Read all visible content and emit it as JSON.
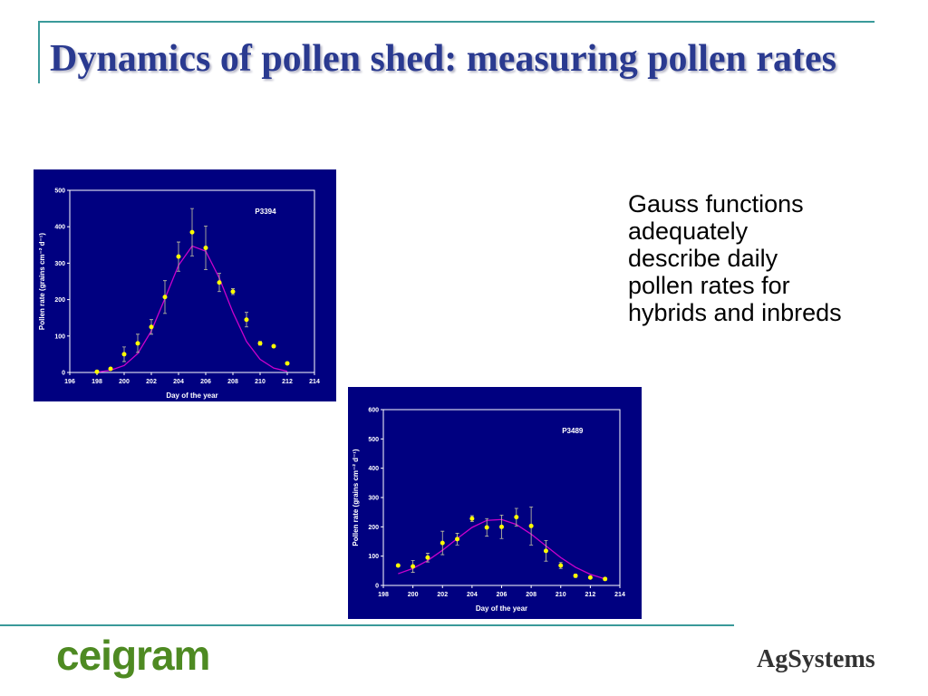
{
  "title": "Dynamics of pollen shed: measuring pollen rates",
  "body_lines": [
    "Gauss functions",
    "adequately",
    "describe daily",
    "pollen rates for",
    "hybrids and inbreds"
  ],
  "logos": [
    "ceigram",
    "AgSystems"
  ],
  "chart_data": [
    {
      "type": "scatter",
      "annotation": "P3394",
      "x_label": "Day of the year",
      "y_label": "Pollen rate (grains cm⁻² d⁻¹)",
      "xlim": [
        196,
        214
      ],
      "xticks": [
        196,
        198,
        200,
        202,
        204,
        206,
        208,
        210,
        212,
        214
      ],
      "ylim": [
        0,
        500
      ],
      "yticks": [
        0,
        100,
        200,
        300,
        400,
        500
      ],
      "series": [
        {
          "type": "scatter",
          "color": "#ffff00",
          "x": [
            198,
            199,
            200,
            201,
            202,
            203,
            204,
            205,
            206,
            207,
            208,
            209,
            210,
            211,
            212
          ],
          "values": [
            2,
            10,
            50,
            80,
            125,
            207,
            318,
            385,
            342,
            247,
            222,
            145,
            80,
            72,
            25
          ],
          "errors": [
            2,
            3,
            20,
            25,
            20,
            45,
            40,
            65,
            60,
            25,
            8,
            20,
            5,
            3,
            3
          ]
        },
        {
          "type": "line",
          "color": "#cc00cc",
          "x": [
            198,
            199,
            200,
            201,
            202,
            203,
            204,
            205,
            206,
            207,
            208,
            209,
            210,
            211,
            212
          ],
          "values": [
            1,
            6,
            19,
            52,
            114,
            203,
            294,
            347,
            333,
            259,
            165,
            85,
            36,
            12,
            3
          ]
        }
      ]
    },
    {
      "type": "scatter",
      "annotation": "P3489",
      "x_label": "Day of the year",
      "y_label": "Pollen rate (grains cm⁻² d⁻¹)",
      "xlim": [
        198,
        214
      ],
      "xticks": [
        198,
        200,
        202,
        204,
        206,
        208,
        210,
        212,
        214
      ],
      "ylim": [
        0,
        600
      ],
      "yticks": [
        0,
        100,
        200,
        300,
        400,
        500,
        600
      ],
      "series": [
        {
          "type": "scatter",
          "color": "#ffff00",
          "x": [
            199,
            200,
            201,
            202,
            203,
            204,
            205,
            206,
            207,
            208,
            209,
            210,
            211,
            212,
            213
          ],
          "values": [
            68,
            65,
            95,
            145,
            158,
            228,
            198,
            200,
            233,
            203,
            118,
            68,
            33,
            27,
            22
          ],
          "errors": [
            3,
            20,
            15,
            40,
            20,
            10,
            30,
            40,
            30,
            65,
            35,
            10,
            5,
            3,
            4
          ]
        },
        {
          "type": "line",
          "color": "#cc00cc",
          "x": [
            199,
            200,
            201,
            202,
            203,
            204,
            205,
            206,
            207,
            208,
            209,
            210,
            211,
            212,
            213
          ],
          "values": [
            40,
            58,
            85,
            120,
            160,
            198,
            222,
            225,
            208,
            175,
            135,
            95,
            62,
            38,
            22
          ]
        }
      ]
    }
  ]
}
